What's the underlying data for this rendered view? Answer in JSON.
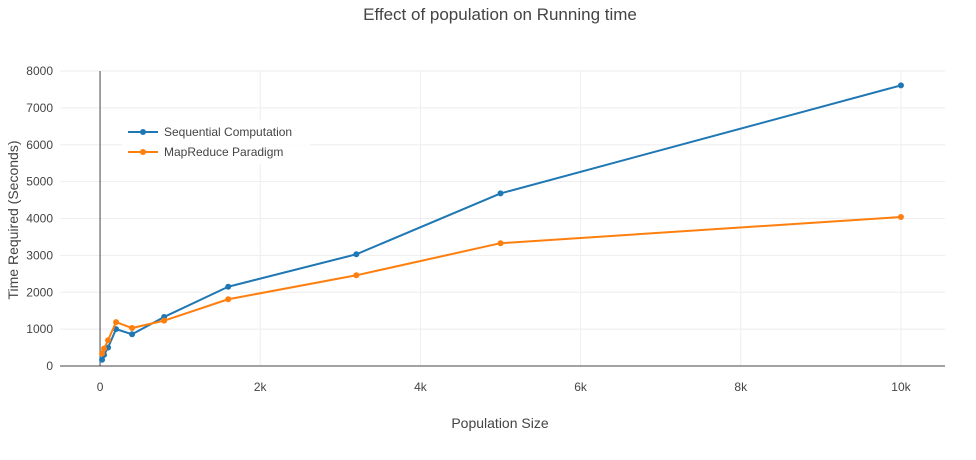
{
  "chart_data": {
    "type": "line",
    "title": "Effect of population on Running time",
    "xlabel": "Population Size",
    "ylabel": "Time Required (Seconds)",
    "xlim": [
      -500,
      10550
    ],
    "ylim": [
      0,
      8000
    ],
    "x_ticks": [
      {
        "value": 0,
        "label": "0"
      },
      {
        "value": 2000,
        "label": "2k"
      },
      {
        "value": 4000,
        "label": "4k"
      },
      {
        "value": 6000,
        "label": "6k"
      },
      {
        "value": 8000,
        "label": "8k"
      },
      {
        "value": 10000,
        "label": "10k"
      }
    ],
    "y_ticks": [
      {
        "value": 0,
        "label": "0"
      },
      {
        "value": 1000,
        "label": "1000"
      },
      {
        "value": 2000,
        "label": "2000"
      },
      {
        "value": 3000,
        "label": "3000"
      },
      {
        "value": 4000,
        "label": "4000"
      },
      {
        "value": 5000,
        "label": "5000"
      },
      {
        "value": 6000,
        "label": "6000"
      },
      {
        "value": 7000,
        "label": "7000"
      },
      {
        "value": 8000,
        "label": "8000"
      }
    ],
    "grid": true,
    "legend_position": "top-left",
    "series": [
      {
        "name": "Sequential Computation",
        "color": "#1f77b4",
        "x": [
          25,
          50,
          100,
          200,
          400,
          800,
          1600,
          3200,
          5000,
          10000
        ],
        "y": [
          170,
          300,
          500,
          1000,
          860,
          1330,
          2150,
          3030,
          4680,
          7610
        ]
      },
      {
        "name": "MapReduce Paradigm",
        "color": "#ff7f0e",
        "x": [
          25,
          50,
          100,
          200,
          400,
          800,
          1600,
          3200,
          5000,
          10000
        ],
        "y": [
          340,
          470,
          700,
          1190,
          1030,
          1230,
          1810,
          2460,
          3330,
          4040
        ]
      }
    ]
  }
}
